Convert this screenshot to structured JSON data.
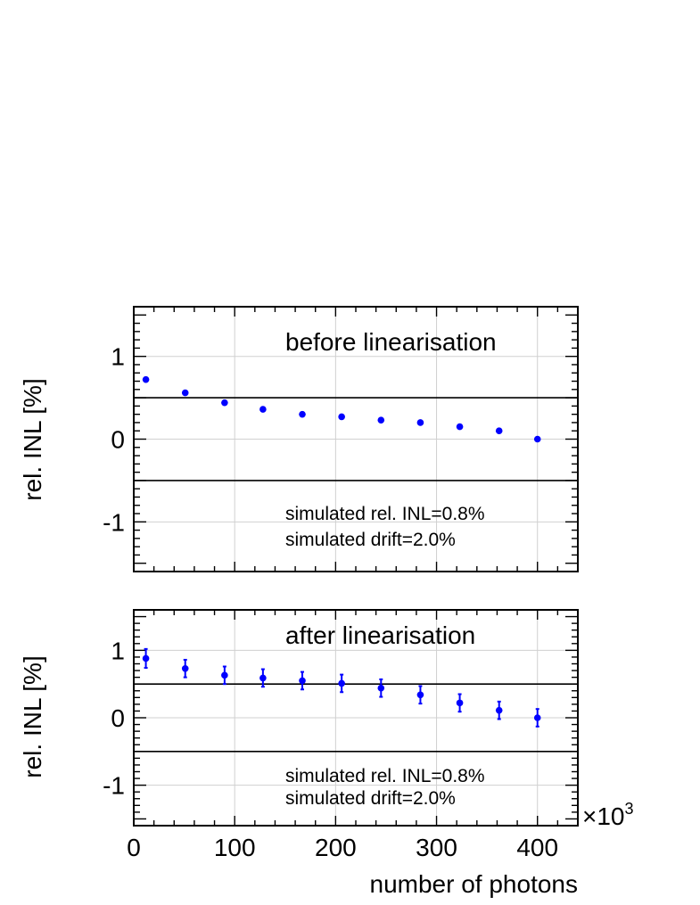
{
  "chart_data": [
    {
      "type": "scatter",
      "title": "before linearisation",
      "ylabel": "rel. INL [%]",
      "xlabel": "",
      "xlim": [
        0,
        440000
      ],
      "ylim": [
        -1.6,
        1.6
      ],
      "yticks": [
        "1",
        "0",
        "-1"
      ],
      "yticks_values": [
        1,
        0,
        -1
      ],
      "reference_lines": [
        0.5,
        -0.5
      ],
      "annotations": [
        "simulated rel. INL=0.8%",
        "simulated drift=2.0%"
      ],
      "grid": true,
      "marker_color": "#0000ff",
      "series": [
        {
          "x": [
            12000,
            51000,
            90000,
            128000,
            167000,
            206000,
            245000,
            284000,
            323000,
            362000,
            400000
          ],
          "values": [
            0.72,
            0.56,
            0.44,
            0.36,
            0.3,
            0.27,
            0.23,
            0.2,
            0.15,
            0.1,
            0.0
          ],
          "errors": [
            0,
            0,
            0,
            0,
            0,
            0,
            0,
            0,
            0,
            0,
            0
          ]
        }
      ]
    },
    {
      "type": "scatter",
      "title": "after linearisation",
      "ylabel": "rel. INL [%]",
      "xlabel": "number of photons",
      "xlim": [
        0,
        440000
      ],
      "ylim": [
        -1.6,
        1.6
      ],
      "xticks": [
        "0",
        "100",
        "200",
        "300",
        "400"
      ],
      "xticks_values": [
        0,
        100000,
        200000,
        300000,
        400000
      ],
      "x_multiplier": "×10",
      "x_multiplier_exp": "3",
      "yticks": [
        "1",
        "0",
        "-1"
      ],
      "yticks_values": [
        1,
        0,
        -1
      ],
      "reference_lines": [
        0.5,
        -0.5
      ],
      "annotations": [
        "simulated rel. INL=0.8%",
        "simulated drift=2.0%"
      ],
      "grid": true,
      "marker_color": "#0000ff",
      "series": [
        {
          "x": [
            12000,
            51000,
            90000,
            128000,
            167000,
            206000,
            245000,
            284000,
            323000,
            362000,
            400000
          ],
          "values": [
            0.88,
            0.73,
            0.63,
            0.59,
            0.55,
            0.51,
            0.44,
            0.34,
            0.22,
            0.11,
            0.0
          ],
          "errors": [
            0.14,
            0.13,
            0.13,
            0.13,
            0.13,
            0.13,
            0.13,
            0.13,
            0.13,
            0.13,
            0.13
          ]
        }
      ]
    }
  ]
}
